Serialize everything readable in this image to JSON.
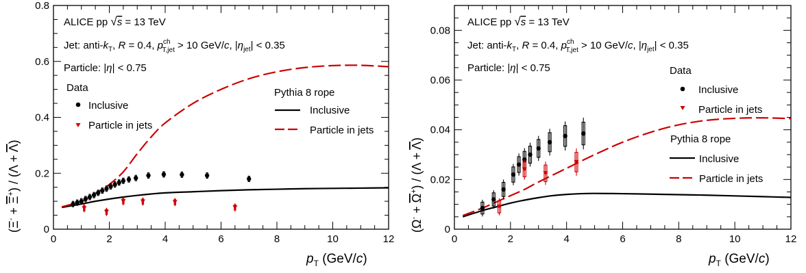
{
  "chart_data": [
    {
      "type": "scatter",
      "xlabel": "p_T (GeV/c)",
      "ylabel": "(Ξ⁻ + Ξ̄⁺) / (Λ + Λ̄)",
      "xlim": [
        0,
        12
      ],
      "ylim": [
        0,
        0.8
      ],
      "xticks": [
        0,
        2,
        4,
        6,
        8,
        10,
        12
      ],
      "xtick_labels": [
        "0",
        "2",
        "4",
        "6",
        "8",
        "10",
        "12"
      ],
      "yticks": [
        0,
        0.2,
        0.4,
        0.6,
        0.8
      ],
      "ytick_labels": [
        "0",
        "0.2",
        "0.4",
        "0.6",
        "0.8"
      ],
      "annotations": [
        "ALICE pp √s = 13 TeV",
        "Jet: anti-kT, R = 0.4, pT,jet ch > 10 GeV/c, |ηjet| < 0.35",
        "Particle: |η| < 0.75"
      ],
      "legend_data_title": "Data",
      "legend_model_title": "Pythia 8 rope",
      "grid": false,
      "series": [
        {
          "name": "Inclusive",
          "kind": "data",
          "color": "#000000",
          "x": [
            0.7,
            0.85,
            1.0,
            1.15,
            1.3,
            1.45,
            1.6,
            1.75,
            1.9,
            2.05,
            2.2,
            2.35,
            2.5,
            2.7,
            2.95,
            3.4,
            3.95,
            4.6,
            5.5,
            7.0
          ],
          "y": [
            0.09,
            0.095,
            0.1,
            0.108,
            0.115,
            0.122,
            0.13,
            0.138,
            0.145,
            0.153,
            0.16,
            0.167,
            0.173,
            0.178,
            0.183,
            0.192,
            0.196,
            0.195,
            0.192,
            0.18
          ]
        },
        {
          "name": "Particle in jets",
          "kind": "data",
          "color": "#cc0000",
          "x": [
            1.1,
            1.9,
            2.5,
            3.2,
            4.35,
            6.5
          ],
          "y": [
            0.075,
            0.062,
            0.1,
            0.099,
            0.097,
            0.078
          ]
        },
        {
          "name": "Inclusive",
          "kind": "model",
          "color": "#000000",
          "dash": "solid",
          "x": [
            0.3,
            1,
            1.5,
            2,
            2.5,
            3,
            3.5,
            4,
            5,
            6,
            7,
            8,
            9,
            10,
            11,
            12
          ],
          "y": [
            0.078,
            0.09,
            0.1,
            0.108,
            0.115,
            0.121,
            0.126,
            0.13,
            0.134,
            0.138,
            0.141,
            0.143,
            0.145,
            0.146,
            0.147,
            0.148
          ]
        },
        {
          "name": "Particle in jets",
          "kind": "model",
          "color": "#cc0000",
          "dash": "long",
          "x": [
            0.3,
            1,
            1.5,
            2,
            2.5,
            3,
            3.5,
            4,
            5,
            6,
            7,
            8,
            9,
            10,
            11,
            12
          ],
          "y": [
            0.08,
            0.1,
            0.128,
            0.16,
            0.205,
            0.27,
            0.33,
            0.38,
            0.45,
            0.5,
            0.538,
            0.563,
            0.578,
            0.585,
            0.586,
            0.581
          ]
        }
      ]
    },
    {
      "type": "scatter",
      "xlabel": "p_T (GeV/c)",
      "ylabel": "(Ω⁻ + Ω̄⁺) / (Λ + Λ̄)",
      "xlim": [
        0,
        12
      ],
      "ylim": [
        0,
        0.09
      ],
      "xticks": [
        0,
        2,
        4,
        6,
        8,
        10,
        12
      ],
      "xtick_labels": [
        "0",
        "2",
        "4",
        "6",
        "8",
        "10",
        "12"
      ],
      "yticks": [
        0,
        0.02,
        0.04,
        0.06,
        0.08
      ],
      "ytick_labels": [
        "0",
        "0.02",
        "0.04",
        "0.06",
        "0.08"
      ],
      "annotations": [
        "ALICE pp √s = 13 TeV",
        "Jet: anti-kT, R = 0.4, pT,jet ch > 10 GeV/c, |ηjet| < 0.35",
        "Particle: |η| < 0.75"
      ],
      "legend_data_title": "Data",
      "legend_model_title": "Pythia 8 rope",
      "grid": false,
      "series": [
        {
          "name": "Inclusive",
          "kind": "data",
          "color": "#000000",
          "x": [
            1.0,
            1.4,
            1.75,
            2.1,
            2.3,
            2.5,
            2.7,
            3.0,
            3.4,
            3.95,
            4.6
          ],
          "y": [
            0.0085,
            0.012,
            0.016,
            0.022,
            0.026,
            0.028,
            0.03,
            0.0325,
            0.035,
            0.0375,
            0.0385
          ]
        },
        {
          "name": "Particle in jets",
          "kind": "data",
          "color": "#cc0000",
          "x": [
            1.6,
            2.5,
            3.25,
            4.35
          ],
          "y": [
            0.009,
            0.024,
            0.0225,
            0.027
          ]
        },
        {
          "name": "Inclusive",
          "kind": "model",
          "color": "#000000",
          "dash": "solid",
          "x": [
            0.3,
            1,
            1.5,
            2,
            2.5,
            3,
            3.5,
            4,
            4.5,
            5,
            6,
            7,
            8,
            9,
            10,
            11,
            12
          ],
          "y": [
            0.005,
            0.0075,
            0.009,
            0.0105,
            0.0117,
            0.0127,
            0.0135,
            0.014,
            0.0143,
            0.0144,
            0.0143,
            0.0141,
            0.0139,
            0.0137,
            0.0134,
            0.0131,
            0.0128
          ]
        },
        {
          "name": "Particle in jets",
          "kind": "model",
          "color": "#cc0000",
          "dash": "long",
          "x": [
            0.3,
            1,
            1.5,
            2,
            2.5,
            3,
            4,
            5,
            6,
            7,
            8,
            9,
            10,
            11,
            12
          ],
          "y": [
            0.0055,
            0.0085,
            0.011,
            0.0135,
            0.016,
            0.019,
            0.0245,
            0.03,
            0.035,
            0.039,
            0.042,
            0.0438,
            0.0446,
            0.0448,
            0.0445
          ]
        }
      ]
    }
  ]
}
